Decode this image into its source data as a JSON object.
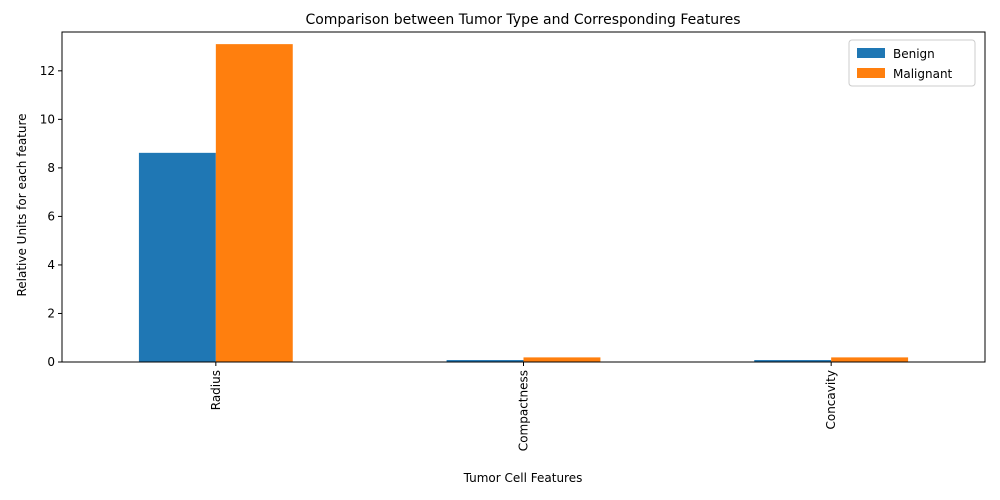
{
  "chart_data": {
    "type": "bar",
    "title": "Comparison between Tumor Type and Corresponding Features",
    "xlabel": "Tumor Cell Features",
    "ylabel": "Relative Units for each feature",
    "categories": [
      "Radius",
      "Compactness",
      "Concavity"
    ],
    "series": [
      {
        "name": "Benign",
        "color": "#1f77b4",
        "values": [
          8.62,
          0.08,
          0.08
        ]
      },
      {
        "name": "Malignant",
        "color": "#ff7f0e",
        "values": [
          13.1,
          0.19,
          0.19
        ]
      }
    ],
    "ylim": [
      0,
      13.6
    ],
    "yticks": [
      0,
      2,
      4,
      6,
      8,
      10,
      12
    ],
    "grid": false,
    "legend": "top-right"
  }
}
